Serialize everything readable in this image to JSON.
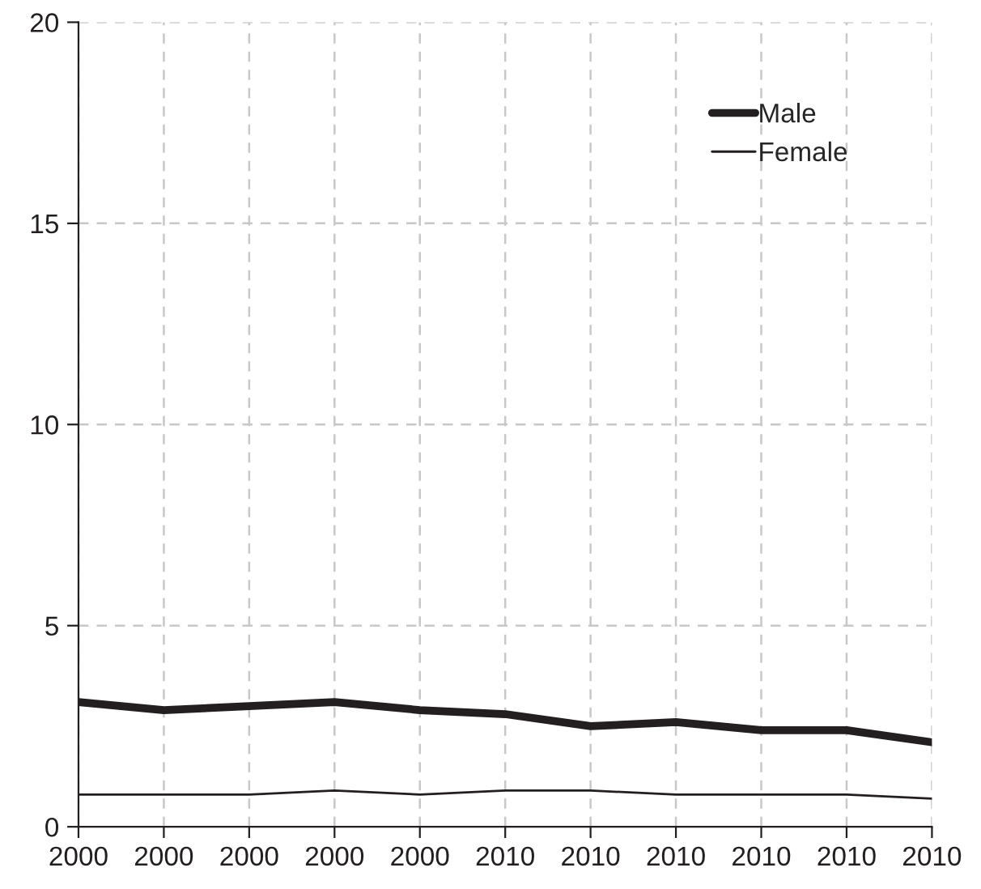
{
  "chart_data": {
    "type": "line",
    "categories": [
      "2000",
      "2000",
      "2000",
      "2000",
      "2000",
      "2010",
      "2010",
      "2010",
      "2010",
      "2010",
      "2010"
    ],
    "series": [
      {
        "name": "Male",
        "color": "#231f20",
        "values": [
          3.1,
          2.9,
          3.0,
          3.1,
          2.9,
          2.8,
          2.5,
          2.6,
          2.4,
          2.4,
          2.1
        ]
      },
      {
        "name": "Female",
        "color": "#231f20",
        "values": [
          0.8,
          0.8,
          0.8,
          0.9,
          0.8,
          0.9,
          0.9,
          0.8,
          0.8,
          0.8,
          0.7
        ]
      }
    ],
    "ylim": [
      0,
      20
    ],
    "yticks": [
      0,
      5,
      10,
      15,
      20
    ],
    "grid": true,
    "legend": "top right",
    "marker": "none",
    "line_style": "solid"
  }
}
